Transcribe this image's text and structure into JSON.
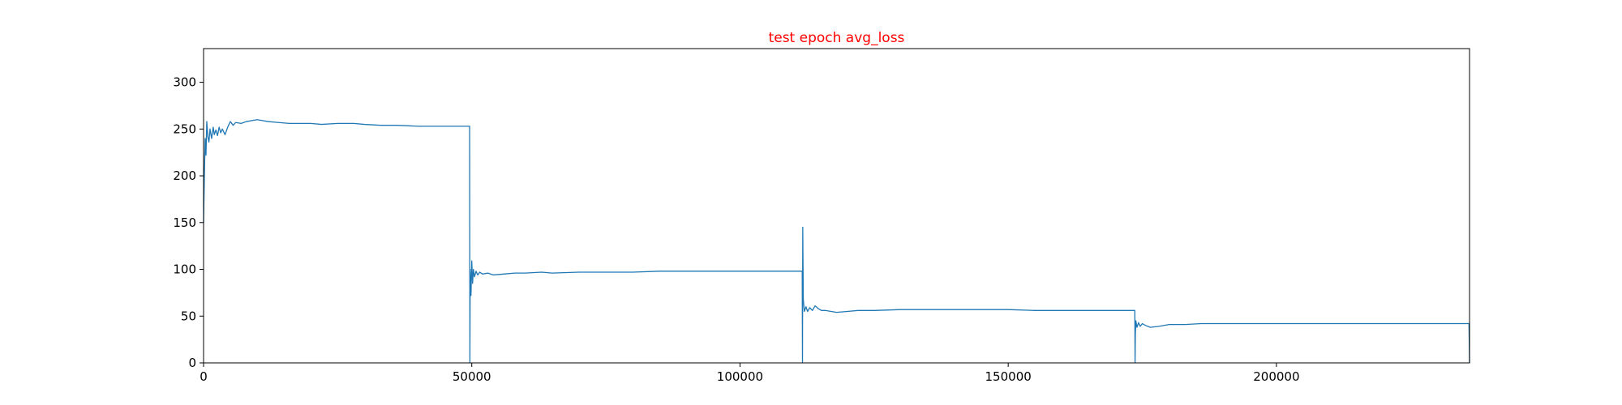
{
  "chart_data": {
    "type": "line",
    "title": "test epoch avg_loss",
    "title_color": "#ff0000",
    "xlabel": "",
    "ylabel": "",
    "xlim": [
      0,
      236000
    ],
    "ylim": [
      0,
      336
    ],
    "xticks": [
      0,
      50000,
      100000,
      150000,
      200000
    ],
    "xtick_labels": [
      "0",
      "50000",
      "100000",
      "150000",
      "200000"
    ],
    "yticks": [
      0,
      50,
      100,
      150,
      200,
      250,
      300
    ],
    "ytick_labels": [
      "0",
      "50",
      "100",
      "150",
      "200",
      "250",
      "300"
    ],
    "grid": false,
    "legend": "none",
    "series": [
      {
        "color": "#1f77b4",
        "points": [
          [
            0,
            150
          ],
          [
            150,
            200
          ],
          [
            300,
            240
          ],
          [
            450,
            222
          ],
          [
            600,
            258
          ],
          [
            800,
            242
          ],
          [
            1000,
            236
          ],
          [
            1200,
            250
          ],
          [
            1500,
            240
          ],
          [
            1800,
            252
          ],
          [
            2000,
            244
          ],
          [
            2300,
            249
          ],
          [
            2600,
            243
          ],
          [
            2900,
            252
          ],
          [
            3200,
            246
          ],
          [
            3500,
            250
          ],
          [
            4000,
            244
          ],
          [
            4500,
            252
          ],
          [
            5000,
            258
          ],
          [
            5500,
            254
          ],
          [
            6000,
            257
          ],
          [
            7000,
            256
          ],
          [
            8000,
            258
          ],
          [
            9000,
            259
          ],
          [
            10000,
            260
          ],
          [
            11000,
            259
          ],
          [
            12000,
            258
          ],
          [
            14000,
            257
          ],
          [
            16000,
            256
          ],
          [
            18000,
            256
          ],
          [
            20000,
            256
          ],
          [
            22000,
            255
          ],
          [
            25000,
            256
          ],
          [
            28000,
            256
          ],
          [
            30000,
            255
          ],
          [
            33000,
            254
          ],
          [
            36000,
            254
          ],
          [
            40000,
            253
          ],
          [
            44000,
            253
          ],
          [
            47000,
            253
          ],
          [
            49600,
            253
          ],
          [
            49650,
            0
          ],
          [
            49700,
            100
          ],
          [
            49850,
            72
          ],
          [
            50000,
            109
          ],
          [
            50150,
            85
          ],
          [
            50300,
            100
          ],
          [
            50500,
            92
          ],
          [
            50800,
            98
          ],
          [
            51100,
            94
          ],
          [
            51500,
            97
          ],
          [
            52000,
            95
          ],
          [
            53000,
            96
          ],
          [
            54000,
            94
          ],
          [
            56000,
            95
          ],
          [
            58000,
            96
          ],
          [
            60000,
            96
          ],
          [
            63000,
            97
          ],
          [
            65000,
            96
          ],
          [
            70000,
            97
          ],
          [
            75000,
            97
          ],
          [
            80000,
            97
          ],
          [
            85000,
            98
          ],
          [
            90000,
            98
          ],
          [
            95000,
            98
          ],
          [
            100000,
            98
          ],
          [
            105000,
            98
          ],
          [
            111600,
            98
          ],
          [
            111650,
            0
          ],
          [
            111700,
            145
          ],
          [
            111800,
            68
          ],
          [
            112000,
            55
          ],
          [
            112300,
            60
          ],
          [
            112600,
            55
          ],
          [
            113000,
            59
          ],
          [
            113500,
            56
          ],
          [
            114000,
            61
          ],
          [
            114600,
            58
          ],
          [
            115200,
            56
          ],
          [
            116000,
            56
          ],
          [
            118000,
            54
          ],
          [
            120000,
            55
          ],
          [
            122000,
            56
          ],
          [
            125000,
            56
          ],
          [
            130000,
            57
          ],
          [
            135000,
            57
          ],
          [
            140000,
            57
          ],
          [
            145000,
            57
          ],
          [
            150000,
            57
          ],
          [
            155000,
            56
          ],
          [
            160000,
            56
          ],
          [
            165000,
            56
          ],
          [
            170000,
            56
          ],
          [
            173600,
            56
          ],
          [
            173650,
            0
          ],
          [
            173700,
            30
          ],
          [
            173800,
            45
          ],
          [
            174000,
            38
          ],
          [
            174300,
            43
          ],
          [
            174600,
            39
          ],
          [
            175000,
            42
          ],
          [
            175600,
            40
          ],
          [
            176500,
            38
          ],
          [
            178000,
            39
          ],
          [
            180000,
            41
          ],
          [
            183000,
            41
          ],
          [
            186000,
            42
          ],
          [
            190000,
            42
          ],
          [
            195000,
            42
          ],
          [
            200000,
            42
          ],
          [
            205000,
            42
          ],
          [
            210000,
            42
          ],
          [
            215000,
            42
          ],
          [
            220000,
            42
          ],
          [
            225000,
            42
          ],
          [
            230000,
            42
          ],
          [
            235900,
            42
          ],
          [
            236000,
            0
          ]
        ]
      }
    ]
  }
}
